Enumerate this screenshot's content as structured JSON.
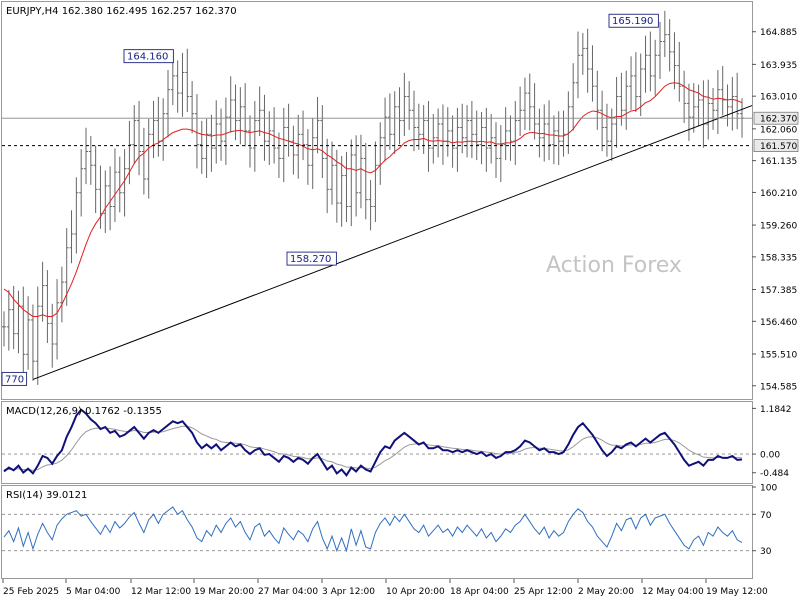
{
  "chart_data": [
    {
      "type": "line",
      "panel": "price",
      "title": "EURJPY,H4 162.380 162.495 162.257 162.370",
      "watermark": "Action Forex",
      "ylim": [
        154.2,
        165.75
      ],
      "y_ticks": [
        "164.885",
        "163.935",
        "163.010",
        "162.370",
        "162.060",
        "161.570",
        "161.135",
        "160.210",
        "159.260",
        "158.335",
        "157.385",
        "156.460",
        "155.510",
        "154.585"
      ],
      "last_price": "162.370",
      "horizontal_level": 161.57,
      "horizontal_level_label": "161.570",
      "annotations": [
        {
          "label": "164.160",
          "x_index": 36,
          "y": 164.16
        },
        {
          "label": "165.190",
          "x_index": 134,
          "y": 165.19
        },
        {
          "label": "158.270",
          "x_index": 69,
          "y": 158.27
        },
        {
          "label": "770",
          "x_index": 6,
          "y": 154.77
        }
      ],
      "trendline": {
        "x_index": [
          6,
          160
        ],
        "y": [
          154.77,
          163.0
        ]
      },
      "series": [
        {
          "kind": "close",
          "values": [
            156.3,
            156.8,
            156.1,
            156.9,
            155.5,
            156.5,
            155.3,
            156.9,
            157.5,
            156.4,
            155.8,
            157.0,
            157.6,
            158.6,
            159.0,
            160.2,
            160.9,
            161.4,
            161.0,
            160.3,
            159.6,
            160.4,
            159.8,
            160.8,
            160.2,
            160.9,
            161.6,
            162.3,
            161.4,
            160.6,
            161.9,
            162.3,
            161.7,
            162.5,
            163.2,
            163.6,
            163.1,
            163.7,
            163.0,
            162.5,
            161.6,
            161.2,
            161.9,
            161.5,
            162.2,
            161.7,
            162.4,
            162.9,
            162.3,
            162.7,
            162.0,
            161.5,
            162.3,
            162.6,
            161.7,
            162.0,
            161.5,
            161.2,
            162.1,
            161.7,
            161.3,
            161.9,
            161.6,
            161.0,
            161.8,
            162.3,
            161.2,
            160.3,
            161.0,
            159.9,
            160.7,
            159.8,
            161.3,
            160.2,
            161.2,
            160.0,
            159.8,
            161.0,
            161.8,
            162.4,
            161.9,
            162.7,
            162.3,
            163.0,
            162.6,
            162.1,
            161.9,
            162.3,
            161.5,
            161.8,
            162.2,
            161.7,
            162.0,
            161.5,
            162.1,
            161.8,
            162.3,
            161.9,
            161.6,
            162.1,
            161.5,
            161.8,
            161.2,
            161.6,
            162.0,
            161.7,
            162.3,
            162.6,
            163.1,
            162.7,
            162.2,
            161.8,
            162.2,
            161.6,
            162.0,
            161.7,
            161.9,
            162.7,
            163.4,
            164.2,
            164.4,
            163.8,
            163.3,
            162.6,
            162.1,
            161.7,
            162.2,
            163.0,
            162.6,
            163.3,
            163.6,
            163.0,
            163.8,
            164.2,
            163.6,
            164.2,
            164.6,
            164.8,
            164.3,
            163.9,
            163.3,
            162.8,
            162.4,
            162.7,
            162.9,
            162.2,
            162.8,
            162.6,
            163.2,
            162.9,
            162.7,
            163.0,
            162.5,
            162.37
          ],
          "color": "#666666"
        },
        {
          "kind": "moving-average",
          "values": [
            157.4,
            157.3,
            157.1,
            156.95,
            156.8,
            156.7,
            156.6,
            156.6,
            156.65,
            156.6,
            156.6,
            156.7,
            156.95,
            157.25,
            157.55,
            157.9,
            158.3,
            158.7,
            159.05,
            159.3,
            159.5,
            159.75,
            159.95,
            160.15,
            160.35,
            160.55,
            160.8,
            161.05,
            161.25,
            161.35,
            161.5,
            161.6,
            161.65,
            161.75,
            161.85,
            161.95,
            162.0,
            162.05,
            162.05,
            162.02,
            161.95,
            161.9,
            161.88,
            161.85,
            161.88,
            161.88,
            161.92,
            161.98,
            162.0,
            162.02,
            161.98,
            161.95,
            161.98,
            162.0,
            161.95,
            161.92,
            161.85,
            161.78,
            161.75,
            161.7,
            161.65,
            161.62,
            161.55,
            161.48,
            161.45,
            161.48,
            161.42,
            161.3,
            161.22,
            161.1,
            161.02,
            160.9,
            160.9,
            160.85,
            160.9,
            160.82,
            160.78,
            160.85,
            161.0,
            161.15,
            161.25,
            161.4,
            161.5,
            161.65,
            161.72,
            161.75,
            161.75,
            161.78,
            161.72,
            161.7,
            161.72,
            161.7,
            161.7,
            161.65,
            161.68,
            161.67,
            161.7,
            161.7,
            161.68,
            161.7,
            161.67,
            161.68,
            161.62,
            161.62,
            161.65,
            161.65,
            161.7,
            161.78,
            161.9,
            161.95,
            161.95,
            161.92,
            161.92,
            161.88,
            161.88,
            161.85,
            161.85,
            161.92,
            162.05,
            162.25,
            162.42,
            162.52,
            162.58,
            162.56,
            162.5,
            162.42,
            162.38,
            162.42,
            162.42,
            162.5,
            162.58,
            162.6,
            162.7,
            162.82,
            162.88,
            163.0,
            163.15,
            163.3,
            163.38,
            163.4,
            163.38,
            163.3,
            163.2,
            163.15,
            163.1,
            163.0,
            162.98,
            162.92,
            162.95,
            162.93,
            162.9,
            162.92,
            162.88,
            162.82
          ],
          "color": "#e02020"
        }
      ]
    },
    {
      "type": "line",
      "panel": "macd",
      "title": "MACD(12,26,9) 0.1762 -0.1355",
      "ylim": [
        -0.75,
        1.35
      ],
      "y_ticks": [
        "1.1842",
        "0.00",
        "-0.484"
      ],
      "series": [
        {
          "kind": "macd",
          "color": "#10107a",
          "values": [
            -0.45,
            -0.35,
            -0.42,
            -0.3,
            -0.48,
            -0.38,
            -0.5,
            -0.3,
            -0.05,
            -0.1,
            -0.25,
            -0.05,
            0.1,
            0.45,
            0.7,
            1.0,
            1.15,
            1.05,
            0.9,
            0.8,
            0.65,
            0.7,
            0.55,
            0.6,
            0.45,
            0.5,
            0.6,
            0.7,
            0.55,
            0.4,
            0.55,
            0.62,
            0.55,
            0.65,
            0.75,
            0.85,
            0.8,
            0.85,
            0.7,
            0.55,
            0.3,
            0.15,
            0.25,
            0.15,
            0.25,
            0.1,
            0.2,
            0.3,
            0.2,
            0.25,
            0.1,
            0.0,
            0.1,
            0.15,
            -0.02,
            0.0,
            -0.1,
            -0.2,
            -0.05,
            -0.1,
            -0.2,
            -0.1,
            -0.15,
            -0.25,
            -0.1,
            0.0,
            -0.2,
            -0.4,
            -0.3,
            -0.5,
            -0.4,
            -0.55,
            -0.35,
            -0.45,
            -0.3,
            -0.4,
            -0.45,
            -0.2,
            0.05,
            0.2,
            0.15,
            0.35,
            0.45,
            0.55,
            0.45,
            0.35,
            0.25,
            0.3,
            0.15,
            0.15,
            0.2,
            0.1,
            0.1,
            0.05,
            0.1,
            0.05,
            0.1,
            0.05,
            0.0,
            0.05,
            -0.05,
            0.0,
            -0.1,
            -0.05,
            0.05,
            0.05,
            0.1,
            0.2,
            0.35,
            0.3,
            0.2,
            0.1,
            0.15,
            0.05,
            0.05,
            0.0,
            0.05,
            0.25,
            0.5,
            0.7,
            0.8,
            0.65,
            0.5,
            0.3,
            0.1,
            -0.05,
            0.05,
            0.2,
            0.15,
            0.25,
            0.3,
            0.2,
            0.3,
            0.4,
            0.3,
            0.4,
            0.5,
            0.55,
            0.4,
            0.25,
            0.05,
            -0.15,
            -0.3,
            -0.25,
            -0.2,
            -0.3,
            -0.15,
            -0.15,
            -0.05,
            -0.1,
            -0.1,
            -0.05,
            -0.15,
            -0.14
          ]
        },
        {
          "kind": "signal",
          "color": "#999999",
          "values": [
            -0.4,
            -0.4,
            -0.4,
            -0.38,
            -0.4,
            -0.4,
            -0.42,
            -0.4,
            -0.33,
            -0.28,
            -0.27,
            -0.23,
            -0.16,
            -0.04,
            0.11,
            0.29,
            0.46,
            0.58,
            0.64,
            0.67,
            0.67,
            0.68,
            0.66,
            0.64,
            0.61,
            0.59,
            0.59,
            0.61,
            0.6,
            0.56,
            0.56,
            0.57,
            0.57,
            0.58,
            0.62,
            0.66,
            0.69,
            0.72,
            0.72,
            0.68,
            0.61,
            0.52,
            0.47,
            0.41,
            0.38,
            0.32,
            0.3,
            0.3,
            0.28,
            0.27,
            0.24,
            0.19,
            0.17,
            0.17,
            0.13,
            0.1,
            0.06,
            0.01,
            0.0,
            -0.02,
            -0.06,
            -0.07,
            -0.09,
            -0.12,
            -0.12,
            -0.1,
            -0.12,
            -0.18,
            -0.2,
            -0.26,
            -0.29,
            -0.34,
            -0.34,
            -0.36,
            -0.35,
            -0.36,
            -0.38,
            -0.34,
            -0.26,
            -0.17,
            -0.11,
            -0.02,
            0.08,
            0.18,
            0.24,
            0.26,
            0.26,
            0.27,
            0.24,
            0.22,
            0.22,
            0.19,
            0.17,
            0.15,
            0.14,
            0.12,
            0.12,
            0.1,
            0.08,
            0.07,
            0.05,
            0.04,
            0.01,
            0.0,
            0.01,
            0.02,
            0.04,
            0.07,
            0.13,
            0.16,
            0.17,
            0.15,
            0.15,
            0.13,
            0.11,
            0.09,
            0.08,
            0.11,
            0.19,
            0.29,
            0.39,
            0.44,
            0.45,
            0.42,
            0.36,
            0.28,
            0.23,
            0.23,
            0.21,
            0.22,
            0.24,
            0.23,
            0.25,
            0.28,
            0.28,
            0.3,
            0.34,
            0.38,
            0.38,
            0.35,
            0.29,
            0.2,
            0.1,
            0.03,
            -0.02,
            -0.08,
            -0.09,
            -0.1,
            -0.09,
            -0.09,
            -0.09,
            -0.08,
            -0.09,
            -0.1
          ]
        }
      ]
    },
    {
      "type": "line",
      "panel": "rsi",
      "title": "RSI(14) 39.0121",
      "ylim": [
        0,
        100
      ],
      "y_ticks": [
        "100",
        "70",
        "30"
      ],
      "levels": [
        70,
        30
      ],
      "series": [
        {
          "kind": "rsi",
          "color": "#3070c0",
          "values": [
            45,
            52,
            40,
            55,
            35,
            50,
            32,
            48,
            60,
            50,
            42,
            58,
            65,
            70,
            72,
            74,
            68,
            70,
            62,
            55,
            48,
            58,
            50,
            62,
            55,
            60,
            67,
            72,
            60,
            50,
            64,
            70,
            60,
            70,
            74,
            78,
            70,
            74,
            64,
            56,
            44,
            40,
            52,
            46,
            58,
            50,
            60,
            66,
            56,
            62,
            50,
            42,
            56,
            60,
            46,
            52,
            44,
            38,
            55,
            48,
            42,
            52,
            48,
            40,
            54,
            62,
            44,
            32,
            46,
            30,
            44,
            30,
            54,
            36,
            52,
            34,
            32,
            50,
            60,
            66,
            58,
            68,
            62,
            70,
            62,
            54,
            50,
            58,
            46,
            52,
            58,
            50,
            54,
            46,
            56,
            50,
            58,
            52,
            46,
            54,
            44,
            50,
            40,
            46,
            54,
            50,
            58,
            62,
            70,
            62,
            54,
            48,
            56,
            44,
            52,
            46,
            50,
            62,
            70,
            76,
            72,
            62,
            56,
            46,
            40,
            34,
            46,
            60,
            52,
            64,
            66,
            54,
            66,
            70,
            58,
            66,
            68,
            70,
            60,
            52,
            44,
            36,
            32,
            42,
            46,
            36,
            50,
            46,
            56,
            50,
            46,
            52,
            42,
            39
          ]
        }
      ]
    }
  ],
  "x_axis": {
    "labels": [
      "25 Feb 2025",
      "5 Mar 04:00",
      "12 Mar 12:00",
      "19 Mar 20:00",
      "27 Mar 04:00",
      "3 Apr 12:00",
      "10 Apr 20:00",
      "18 Apr 04:00",
      "25 Apr 12:00",
      "2 May 20:00",
      "12 May 04:00",
      "19 May 12:00"
    ]
  },
  "colors": {
    "bars": "#666666",
    "ma": "#e02020",
    "macd": "#10107a",
    "signal": "#999999",
    "rsi": "#3070c0",
    "label_box_text": "#1a237e",
    "last_price_bg": "#e9e9e9",
    "level_bg": "#e9e9e9"
  }
}
